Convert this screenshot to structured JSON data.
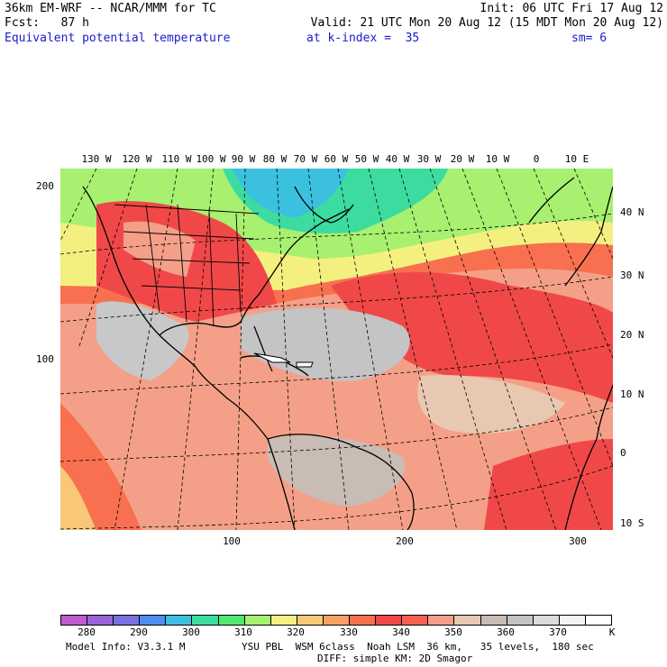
{
  "header": {
    "line1_left": "36km EM-WRF -- NCAR/MMM for TC",
    "line1_right": "Init: 06 UTC Fri 17 Aug 12",
    "line2_left": "Fcst:   87 h",
    "line2_right": "Valid: 21 UTC Mon 20 Aug 12 (15 MDT Mon 20 Aug 12)",
    "field_name": "Equivalent potential temperature",
    "k_index": "at k-index =  35",
    "smoothing": "sm= 6"
  },
  "map": {
    "lon_labels": [
      "130 W",
      "120 W",
      "110 W",
      "100 W",
      "90 W",
      "80 W",
      "70 W",
      "60 W",
      "50 W",
      "40 W",
      "30 W",
      "20 W",
      "10 W",
      "0",
      "10 E"
    ],
    "lat_labels": [
      "40 N",
      "30 N",
      "20 N",
      "10 N",
      "0",
      "10 S"
    ],
    "grid_y_labels": [
      "200",
      "100"
    ],
    "grid_x_labels": [
      "100",
      "200",
      "300"
    ]
  },
  "colorbar": {
    "colors": [
      "#c25ad0",
      "#9a64d6",
      "#7a70e0",
      "#4f8ef0",
      "#3cc0e0",
      "#3cdca0",
      "#50e870",
      "#a8f070",
      "#f4f080",
      "#f8c878",
      "#f8a064",
      "#f87050",
      "#f04848",
      "#f86050",
      "#f4a088",
      "#e8c8b0",
      "#c8bcb4",
      "#c4c4c4",
      "#dadada",
      "#f4f4f4",
      "#ffffff"
    ],
    "labels": [
      "280",
      "290",
      "300",
      "310",
      "320",
      "330",
      "340",
      "350",
      "360",
      "370"
    ],
    "unit": "K"
  },
  "footer": {
    "model_info": "Model Info: V3.3.1 M",
    "physics": "YSU PBL  WSM 6class  Noah LSM  36 km,   35 levels,  180 sec",
    "physics2": "DIFF: simple KM: 2D Smagor"
  }
}
